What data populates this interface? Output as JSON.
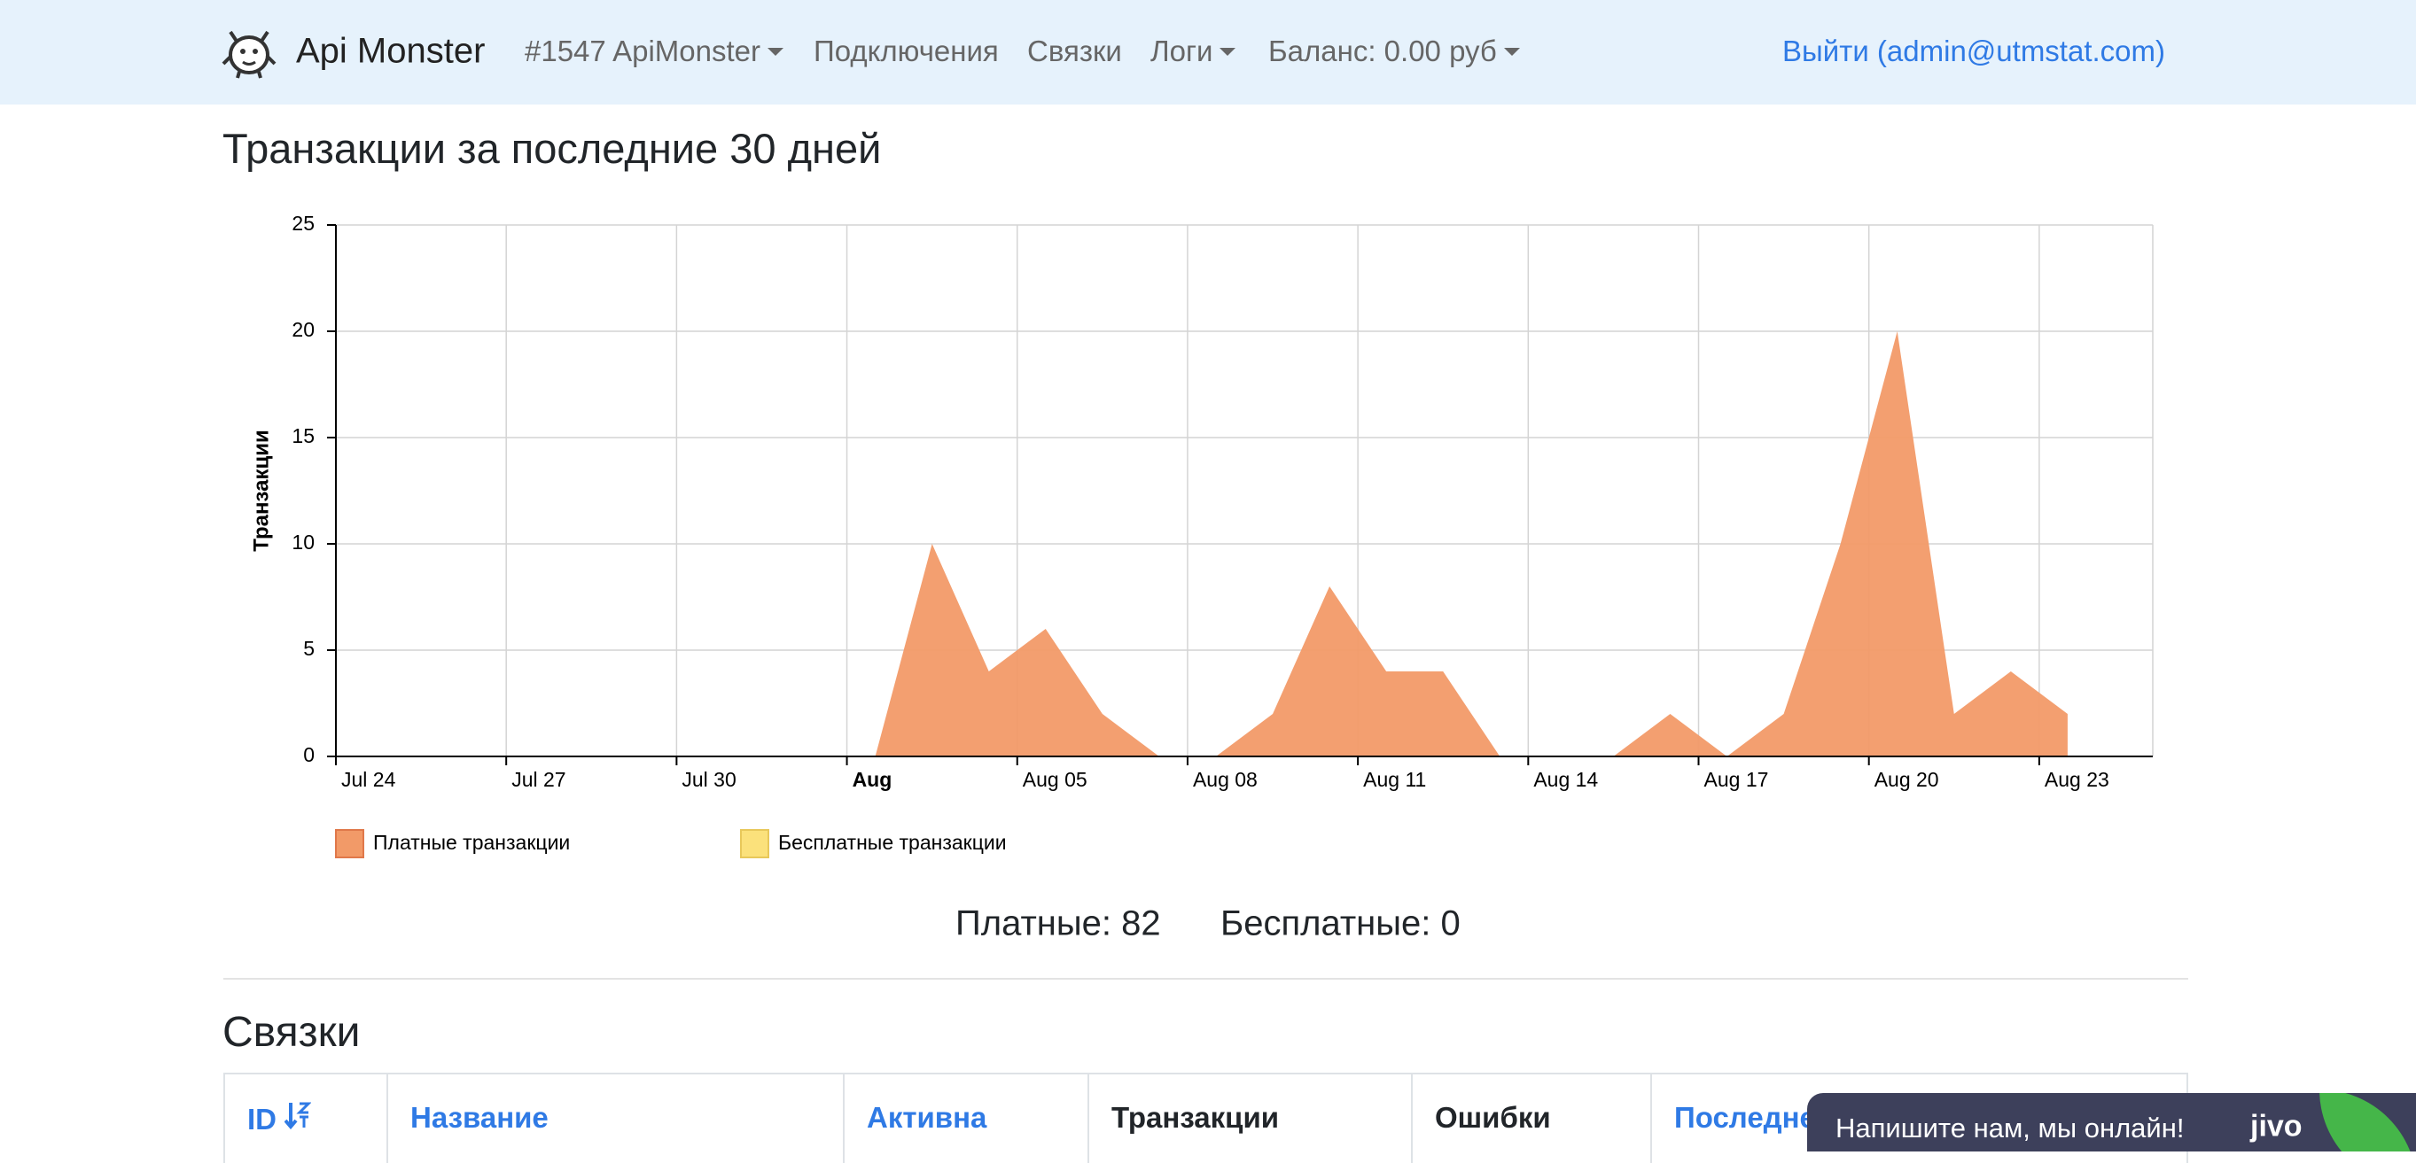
{
  "nav": {
    "brand": "Api Monster",
    "account": "#1547 ApiMonster",
    "items": [
      "Подключения",
      "Связки",
      "Логи",
      "Баланс: 0.00 руб"
    ],
    "logout": "Выйти (admin@utmstat.com)"
  },
  "page_title": "Транзакции за последние 30 дней",
  "chart_data": {
    "type": "area",
    "y_label": "Транзакции",
    "categories": [
      "Jul 24",
      null,
      null,
      "Jul 27",
      null,
      null,
      "Jul 30",
      null,
      null,
      "Aug",
      null,
      null,
      "Aug 05",
      null,
      null,
      "Aug 08",
      null,
      null,
      "Aug 11",
      null,
      null,
      "Aug 14",
      null,
      null,
      "Aug 17",
      null,
      null,
      "Aug 20",
      null,
      null,
      "Aug 23"
    ],
    "series": [
      {
        "name": "Платные транзакции",
        "color": "#f29a68",
        "values": [
          0,
          0,
          0,
          0,
          0,
          0,
          0,
          0,
          0,
          0,
          10,
          4,
          6,
          2,
          0,
          0,
          2,
          8,
          4,
          4,
          0,
          0,
          0,
          2,
          0,
          2,
          10,
          20,
          2,
          4,
          2
        ]
      },
      {
        "name": "Бесплатные транзакции",
        "color": "#fbe17b",
        "values": [
          0,
          0,
          0,
          0,
          0,
          0,
          0,
          0,
          0,
          0,
          0,
          0,
          0,
          0,
          0,
          0,
          0,
          0,
          0,
          0,
          0,
          0,
          0,
          0,
          0,
          0,
          0,
          0,
          0,
          0,
          0
        ]
      }
    ],
    "ylim": [
      0,
      25
    ],
    "yticks": [
      0,
      5,
      10,
      15,
      20,
      25
    ],
    "grid": true,
    "legend": "bottom"
  },
  "summary": {
    "paid_label": "Платные:",
    "paid": 82,
    "free_label": "Бесплатные:",
    "free": 0
  },
  "section_title": "Связки",
  "table": {
    "headers": [
      "ID",
      "Название",
      "Активна",
      "Транзакции",
      "Ошибки",
      "Последне"
    ]
  },
  "chat": {
    "text": "Напишите нам, мы онлайн!",
    "brand": "jivo"
  }
}
